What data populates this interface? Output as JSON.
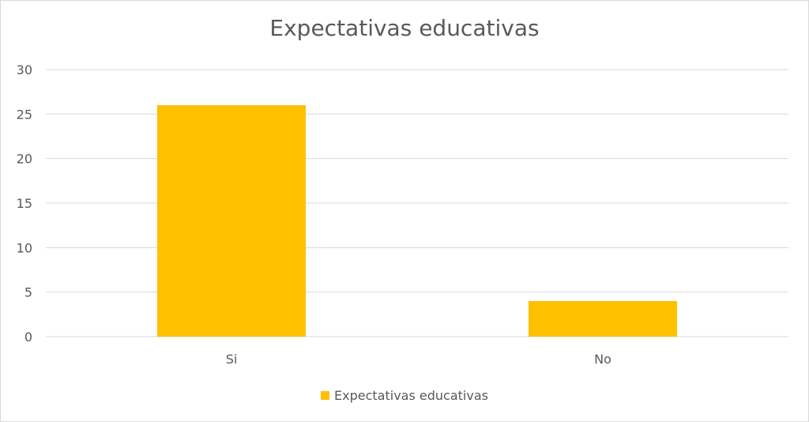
{
  "chart_data": {
    "type": "bar",
    "title": "Expectativas educativas",
    "categories": [
      "Si",
      "No"
    ],
    "series": [
      {
        "name": "Expectativas educativas",
        "values": [
          26,
          4
        ],
        "color": "#FFC000"
      }
    ],
    "ylim": [
      0,
      30
    ],
    "yticks": [
      0,
      5,
      10,
      15,
      20,
      25,
      30
    ],
    "grid": true,
    "legend_position": "bottom"
  }
}
